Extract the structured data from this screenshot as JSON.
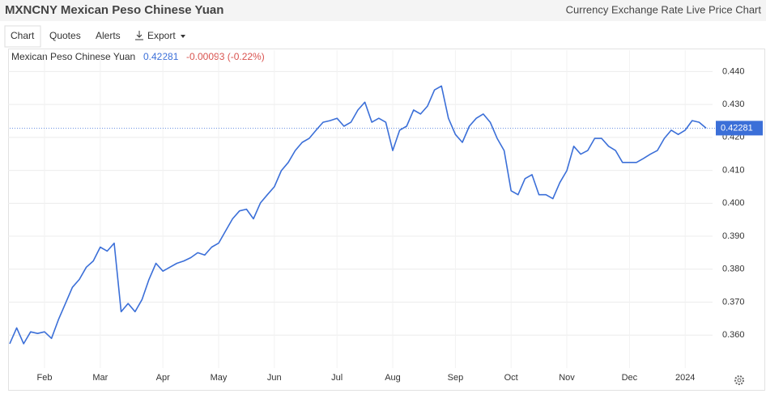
{
  "header": {
    "title": "MXNCNY Mexican Peso Chinese Yuan",
    "subtitle": "Currency Exchange Rate Live Price Chart"
  },
  "tabs": [
    "Chart",
    "Quotes",
    "Alerts",
    "Export"
  ],
  "chart_data": {
    "type": "line",
    "legend": {
      "name": "Mexican Peso Chinese Yuan",
      "price": "0.42281",
      "change": "-0.00093 (-0.22%)"
    },
    "categories": [
      null,
      null,
      null,
      null,
      null,
      "Feb",
      null,
      null,
      null,
      null,
      null,
      null,
      null,
      "Mar",
      null,
      null,
      null,
      null,
      null,
      null,
      null,
      null,
      "Apr",
      null,
      null,
      null,
      null,
      null,
      null,
      null,
      "May",
      null,
      null,
      null,
      null,
      null,
      null,
      null,
      "Jun",
      null,
      null,
      null,
      null,
      null,
      null,
      null,
      null,
      "Jul",
      null,
      null,
      null,
      null,
      null,
      null,
      null,
      "Aug",
      null,
      null,
      null,
      null,
      null,
      null,
      null,
      null,
      "Sep",
      null,
      null,
      null,
      null,
      null,
      null,
      null,
      "Oct",
      null,
      null,
      null,
      null,
      null,
      null,
      null,
      "Nov",
      null,
      null,
      null,
      null,
      null,
      null,
      null,
      null,
      "Dec",
      null,
      null,
      null,
      null,
      null,
      null,
      null,
      "2024",
      null,
      null,
      null
    ],
    "series": [
      {
        "name": "Mexican Peso Chinese Yuan",
        "color": "#3b6fd8",
        "values": [
          0.3574,
          0.3622,
          0.3574,
          0.361,
          0.3605,
          0.361,
          0.359,
          0.3647,
          0.3696,
          0.3745,
          0.3769,
          0.3806,
          0.3825,
          0.3867,
          0.3855,
          0.3879,
          0.3671,
          0.3696,
          0.3671,
          0.3708,
          0.3769,
          0.3818,
          0.3794,
          0.3806,
          0.3818,
          0.3825,
          0.3835,
          0.385,
          0.3843,
          0.3867,
          0.3879,
          0.3916,
          0.3953,
          0.3977,
          0.3982,
          0.3953,
          0.4001,
          0.4026,
          0.405,
          0.4099,
          0.4124,
          0.416,
          0.4185,
          0.4197,
          0.4222,
          0.4246,
          0.4251,
          0.4258,
          0.4234,
          0.4246,
          0.4283,
          0.4307,
          0.4246,
          0.4258,
          0.4246,
          0.416,
          0.4222,
          0.4234,
          0.4283,
          0.4271,
          0.4295,
          0.4344,
          0.4356,
          0.4258,
          0.4209,
          0.4185,
          0.4234,
          0.4258,
          0.4271,
          0.4246,
          0.4197,
          0.416,
          0.4038,
          0.4026,
          0.4075,
          0.4087,
          0.4026,
          0.4026,
          0.4014,
          0.4063,
          0.4099,
          0.4173,
          0.4149,
          0.416,
          0.4197,
          0.4197,
          0.4173,
          0.416,
          0.4124,
          0.4124,
          0.4124,
          0.4136,
          0.4149,
          0.416,
          0.4197,
          0.4222,
          0.4209,
          0.4222,
          0.4251,
          0.4246,
          0.42281
        ]
      }
    ],
    "ylim": [
      0.35,
      0.445
    ],
    "yticks": [
      {
        "value": 0.36,
        "label": "0.360"
      },
      {
        "value": 0.37,
        "label": "0.370"
      },
      {
        "value": 0.38,
        "label": "0.380"
      },
      {
        "value": 0.39,
        "label": "0.390"
      },
      {
        "value": 0.4,
        "label": "0.400"
      },
      {
        "value": 0.41,
        "label": "0.410"
      },
      {
        "value": 0.42,
        "label": "0.420"
      },
      {
        "value": 0.43,
        "label": "0.430"
      },
      {
        "value": 0.44,
        "label": "0.440"
      }
    ],
    "grid": true
  }
}
